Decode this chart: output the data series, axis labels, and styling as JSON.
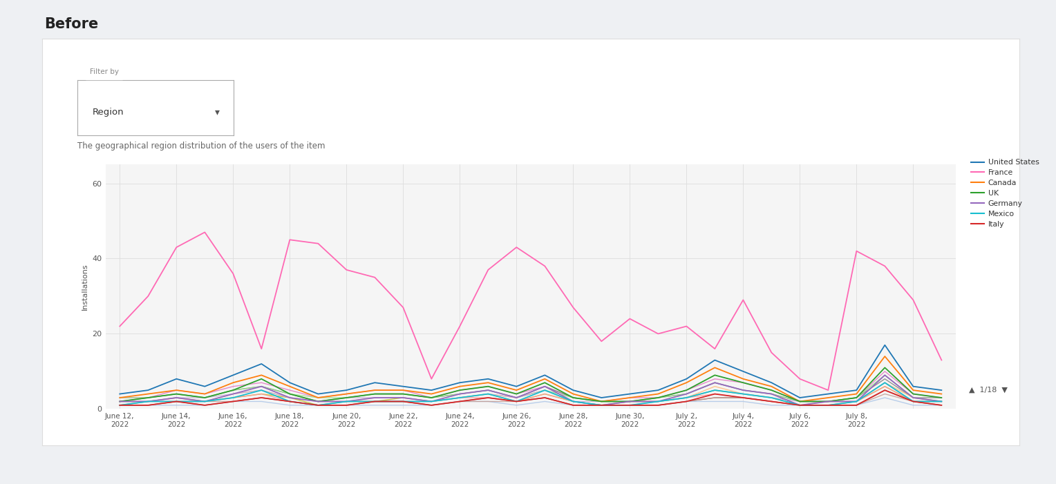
{
  "title": "Before",
  "subtitle": "The geographical region distribution of the users of the item",
  "filter_label": "Filter by",
  "filter_value": "Region",
  "ylabel": "Installations",
  "ylim": [
    0,
    65
  ],
  "yticks": [
    0,
    20,
    40,
    60
  ],
  "x_labels": [
    "June 12,\n2022",
    "June 14,\n2022",
    "June 16,\n2022",
    "June 18,\n2022",
    "June 20,\n2022",
    "June 22,\n2022",
    "June 24,\n2022",
    "June 26,\n2022",
    "June 28,\n2022",
    "June 30,\n2022",
    "July 2,\n2022",
    "July 4,\n2022",
    "July 6,\n2022",
    "July 8,\n2022"
  ],
  "background_color": "#f5f5f5",
  "page_bg": "#eef0f3",
  "legend_entries": [
    "United States",
    "France",
    "Canada",
    "UK",
    "Germany",
    "Mexico",
    "Italy"
  ],
  "legend_colors": [
    "#1f77b4",
    "#ff69b4",
    "#ff7f0e",
    "#2ca02c",
    "#9467bd",
    "#17becf",
    "#d62728"
  ],
  "legend_page": "1/18",
  "france_data": [
    22,
    30,
    43,
    47,
    36,
    16,
    45,
    44,
    37,
    35,
    27,
    8,
    22,
    37,
    43,
    38,
    27,
    18,
    24,
    20,
    22,
    16,
    29,
    15,
    8,
    5,
    42,
    38,
    29,
    13
  ],
  "us_data": [
    4,
    5,
    8,
    6,
    9,
    12,
    7,
    4,
    5,
    7,
    6,
    5,
    7,
    8,
    6,
    9,
    5,
    3,
    4,
    5,
    8,
    13,
    10,
    7,
    3,
    4,
    5,
    17,
    6,
    5
  ],
  "canada_data": [
    3,
    4,
    5,
    4,
    7,
    9,
    6,
    3,
    4,
    5,
    5,
    4,
    6,
    7,
    5,
    8,
    4,
    2,
    3,
    4,
    7,
    11,
    8,
    6,
    2,
    3,
    4,
    14,
    5,
    4
  ],
  "uk_data": [
    2,
    3,
    4,
    3,
    5,
    8,
    4,
    2,
    3,
    4,
    4,
    3,
    5,
    6,
    4,
    7,
    3,
    2,
    2,
    3,
    5,
    9,
    7,
    5,
    2,
    2,
    3,
    11,
    4,
    3
  ],
  "germany_data": [
    2,
    2,
    3,
    2,
    4,
    6,
    3,
    2,
    2,
    3,
    3,
    2,
    4,
    5,
    3,
    6,
    2,
    1,
    2,
    2,
    4,
    7,
    5,
    4,
    1,
    2,
    2,
    9,
    3,
    2
  ],
  "mexico_data": [
    1,
    2,
    2,
    2,
    3,
    5,
    2,
    1,
    2,
    2,
    2,
    2,
    3,
    4,
    2,
    5,
    2,
    1,
    1,
    2,
    3,
    5,
    4,
    3,
    1,
    1,
    2,
    7,
    2,
    2
  ],
  "italy_data": [
    1,
    1,
    2,
    1,
    2,
    3,
    2,
    1,
    1,
    2,
    2,
    1,
    2,
    3,
    2,
    3,
    1,
    1,
    1,
    1,
    2,
    4,
    3,
    2,
    1,
    1,
    1,
    5,
    2,
    1
  ],
  "extra_lines": [
    [
      3,
      3,
      5,
      4,
      6,
      7,
      5,
      3,
      4,
      5,
      5,
      3,
      5,
      6,
      4,
      6,
      3,
      2,
      3,
      3,
      5,
      8,
      7,
      5,
      2,
      2,
      3,
      10,
      4,
      3
    ],
    [
      2,
      3,
      4,
      3,
      5,
      6,
      4,
      2,
      3,
      4,
      4,
      3,
      4,
      5,
      3,
      6,
      3,
      2,
      2,
      3,
      4,
      7,
      5,
      4,
      2,
      2,
      3,
      8,
      3,
      3
    ],
    [
      1,
      2,
      3,
      2,
      3,
      4,
      3,
      1,
      2,
      2,
      3,
      2,
      3,
      4,
      2,
      4,
      2,
      1,
      2,
      2,
      3,
      5,
      4,
      3,
      1,
      1,
      2,
      6,
      2,
      2
    ],
    [
      1,
      1,
      2,
      1,
      2,
      3,
      2,
      1,
      1,
      2,
      2,
      1,
      2,
      3,
      2,
      3,
      1,
      1,
      1,
      1,
      2,
      3,
      3,
      2,
      1,
      1,
      1,
      5,
      2,
      1
    ],
    [
      1,
      1,
      1,
      1,
      2,
      2,
      1,
      1,
      1,
      1,
      1,
      1,
      2,
      2,
      1,
      2,
      1,
      1,
      1,
      1,
      2,
      2,
      2,
      1,
      1,
      1,
      1,
      3,
      1,
      1
    ],
    [
      2,
      2,
      3,
      2,
      4,
      5,
      3,
      2,
      2,
      3,
      3,
      2,
      3,
      4,
      3,
      5,
      2,
      1,
      2,
      2,
      3,
      6,
      4,
      3,
      1,
      2,
      2,
      7,
      3,
      2
    ],
    [
      3,
      3,
      4,
      3,
      5,
      6,
      4,
      3,
      3,
      4,
      4,
      3,
      4,
      5,
      3,
      5,
      3,
      2,
      2,
      3,
      4,
      7,
      5,
      4,
      2,
      2,
      3,
      9,
      3,
      2
    ],
    [
      1,
      2,
      2,
      2,
      3,
      4,
      2,
      1,
      2,
      2,
      2,
      2,
      3,
      3,
      2,
      4,
      2,
      1,
      1,
      2,
      3,
      4,
      3,
      2,
      1,
      1,
      2,
      6,
      2,
      2
    ],
    [
      2,
      2,
      3,
      3,
      4,
      5,
      3,
      2,
      3,
      3,
      3,
      2,
      3,
      4,
      3,
      5,
      2,
      2,
      2,
      2,
      3,
      5,
      4,
      3,
      2,
      2,
      2,
      7,
      2,
      2
    ],
    [
      1,
      1,
      2,
      2,
      2,
      3,
      2,
      1,
      1,
      2,
      2,
      1,
      2,
      2,
      2,
      3,
      1,
      1,
      1,
      1,
      2,
      3,
      3,
      2,
      1,
      1,
      1,
      4,
      2,
      1
    ]
  ],
  "extra_colors": [
    "#e377c2",
    "#7f7f7f",
    "#bcbd22",
    "#8c564b",
    "#aec7e8",
    "#ffbb78",
    "#98df8a",
    "#ff9896",
    "#c5b0d5",
    "#c49c94"
  ]
}
